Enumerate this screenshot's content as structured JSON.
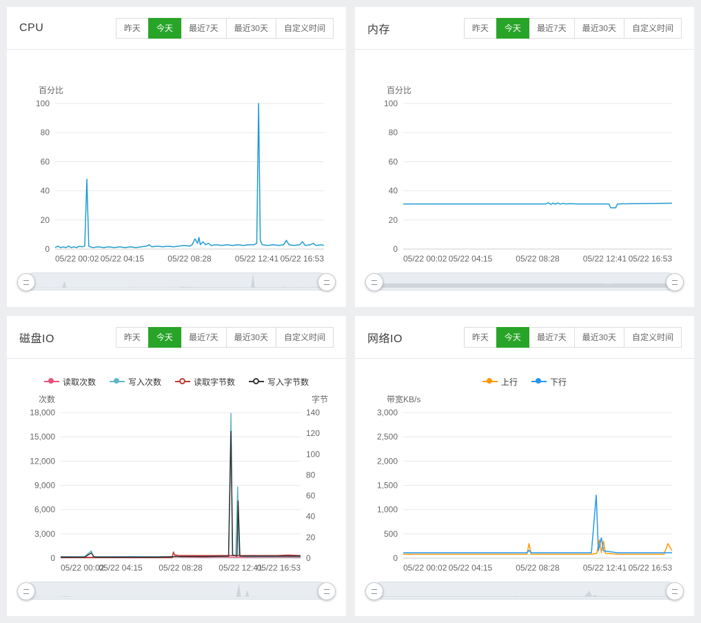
{
  "colors": {
    "page_bg": "#eceef0",
    "card_bg": "#ffffff",
    "active_time_button": "#28a428",
    "grid_line": "#e8e8e8",
    "axis_line": "#cccccc"
  },
  "time_buttons": [
    "昨天",
    "今天",
    "最近7天",
    "最近30天",
    "自定义时间"
  ],
  "active_time_index": 1,
  "panels": [
    {
      "title": "CPU"
    },
    {
      "title": "内存"
    },
    {
      "title": "磁盘IO"
    },
    {
      "title": "网络IO"
    }
  ],
  "chart_data": [
    {
      "type": "line",
      "title": "CPU",
      "unit_left": "百分比",
      "unit_right": "",
      "show_legend": false,
      "grid": true,
      "legend_position": "top-center",
      "x_labels": [
        "05/22 00:02",
        "05/22 04:15",
        "05/22 08:28",
        "05/22 12:41",
        "05/22 16:53"
      ],
      "y_left": {
        "min": 0,
        "max": 100,
        "ticks": [
          0,
          20,
          40,
          60,
          80,
          100
        ]
      },
      "shadow_series": 0,
      "series": [
        {
          "name": "",
          "color": "#1d9bd1",
          "axis": "left",
          "hollow": false,
          "points": [
            [
              0,
              1
            ],
            [
              0.01,
              2
            ],
            [
              0.02,
              1
            ],
            [
              0.03,
              1.5
            ],
            [
              0.04,
              1
            ],
            [
              0.05,
              2
            ],
            [
              0.06,
              1
            ],
            [
              0.07,
              1.5
            ],
            [
              0.08,
              1
            ],
            [
              0.09,
              2
            ],
            [
              0.1,
              1.5
            ],
            [
              0.11,
              2
            ],
            [
              0.118,
              48
            ],
            [
              0.125,
              2
            ],
            [
              0.14,
              1
            ],
            [
              0.16,
              1.5
            ],
            [
              0.18,
              1
            ],
            [
              0.2,
              1.5
            ],
            [
              0.22,
              1
            ],
            [
              0.24,
              1.5
            ],
            [
              0.26,
              1
            ],
            [
              0.28,
              1.5
            ],
            [
              0.3,
              1
            ],
            [
              0.32,
              1.5
            ],
            [
              0.34,
              2
            ],
            [
              0.35,
              3
            ],
            [
              0.36,
              1.5
            ],
            [
              0.38,
              2
            ],
            [
              0.4,
              1.5
            ],
            [
              0.42,
              2
            ],
            [
              0.44,
              1.5
            ],
            [
              0.46,
              2
            ],
            [
              0.48,
              2.5
            ],
            [
              0.5,
              2
            ],
            [
              0.51,
              3
            ],
            [
              0.52,
              7
            ],
            [
              0.53,
              4
            ],
            [
              0.535,
              8
            ],
            [
              0.54,
              3
            ],
            [
              0.55,
              5
            ],
            [
              0.56,
              3
            ],
            [
              0.57,
              4
            ],
            [
              0.58,
              2.5
            ],
            [
              0.6,
              3
            ],
            [
              0.62,
              2.5
            ],
            [
              0.64,
              3
            ],
            [
              0.66,
              2.5
            ],
            [
              0.68,
              3
            ],
            [
              0.7,
              2.5
            ],
            [
              0.72,
              3
            ],
            [
              0.74,
              3
            ],
            [
              0.75,
              4
            ],
            [
              0.757,
              100
            ],
            [
              0.763,
              6
            ],
            [
              0.77,
              3
            ],
            [
              0.79,
              2.5
            ],
            [
              0.81,
              3
            ],
            [
              0.83,
              2.5
            ],
            [
              0.85,
              3
            ],
            [
              0.86,
              6
            ],
            [
              0.87,
              3
            ],
            [
              0.89,
              2.5
            ],
            [
              0.91,
              3
            ],
            [
              0.92,
              5
            ],
            [
              0.93,
              2.5
            ],
            [
              0.95,
              3
            ],
            [
              0.96,
              4
            ],
            [
              0.97,
              2.5
            ],
            [
              0.99,
              3
            ],
            [
              1,
              2.5
            ]
          ]
        }
      ]
    },
    {
      "type": "line",
      "title": "内存",
      "unit_left": "百分比",
      "unit_right": "",
      "show_legend": false,
      "grid": true,
      "legend_position": "top-center",
      "x_labels": [
        "05/22 00:02",
        "05/22 04:15",
        "05/22 08:28",
        "05/22 12:41",
        "05/22 16:53"
      ],
      "y_left": {
        "min": 0,
        "max": 100,
        "ticks": [
          0,
          20,
          40,
          60,
          80,
          100
        ]
      },
      "shadow_series": 0,
      "series": [
        {
          "name": "",
          "color": "#1d9bd1",
          "axis": "left",
          "hollow": false,
          "points": [
            [
              0,
              31
            ],
            [
              0.1,
              31
            ],
            [
              0.2,
              31
            ],
            [
              0.3,
              31
            ],
            [
              0.4,
              31
            ],
            [
              0.5,
              31
            ],
            [
              0.53,
              31
            ],
            [
              0.54,
              31.8
            ],
            [
              0.55,
              30.6
            ],
            [
              0.557,
              31.6
            ],
            [
              0.565,
              30.8
            ],
            [
              0.575,
              31.6
            ],
            [
              0.585,
              30.9
            ],
            [
              0.595,
              31.4
            ],
            [
              0.605,
              31
            ],
            [
              0.62,
              31.2
            ],
            [
              0.65,
              31
            ],
            [
              0.7,
              31
            ],
            [
              0.75,
              31
            ],
            [
              0.765,
              31
            ],
            [
              0.772,
              28.3
            ],
            [
              0.79,
              28.3
            ],
            [
              0.797,
              31
            ],
            [
              0.85,
              31.2
            ],
            [
              0.92,
              31.3
            ],
            [
              1,
              31.5
            ]
          ]
        }
      ]
    },
    {
      "type": "line",
      "title": "磁盘IO",
      "unit_left": "次数",
      "unit_right": "字节",
      "show_legend": true,
      "grid": true,
      "legend_position": "top-center",
      "x_labels": [
        "05/22 00:02",
        "05/22 04:15",
        "05/22 08:28",
        "05/22 12:41",
        "05/22 16:53"
      ],
      "y_left": {
        "min": 0,
        "max": 18000,
        "ticks": [
          0,
          3000,
          6000,
          9000,
          12000,
          15000,
          18000
        ]
      },
      "y_right": {
        "min": 0,
        "max": 140,
        "ticks": [
          0,
          20,
          40,
          60,
          80,
          100,
          120,
          140
        ]
      },
      "shadow_series": 1,
      "series": [
        {
          "name": "读取次数",
          "color": "#e6537a",
          "axis": "left",
          "hollow": false,
          "points": [
            [
              0,
              120
            ],
            [
              0.1,
              100
            ],
            [
              0.2,
              110
            ],
            [
              0.3,
              100
            ],
            [
              0.4,
              110
            ],
            [
              0.46,
              120
            ],
            [
              0.47,
              150
            ],
            [
              0.48,
              300
            ],
            [
              0.49,
              160
            ],
            [
              0.5,
              150
            ],
            [
              0.6,
              120
            ],
            [
              0.7,
              130
            ],
            [
              0.75,
              120
            ],
            [
              0.8,
              110
            ],
            [
              0.9,
              120
            ],
            [
              1,
              110
            ]
          ]
        },
        {
          "name": "写入次数",
          "color": "#5fb6c7",
          "axis": "left",
          "hollow": false,
          "points": [
            [
              0,
              200
            ],
            [
              0.05,
              180
            ],
            [
              0.1,
              200
            ],
            [
              0.128,
              900
            ],
            [
              0.135,
              200
            ],
            [
              0.2,
              180
            ],
            [
              0.3,
              200
            ],
            [
              0.4,
              180
            ],
            [
              0.5,
              200
            ],
            [
              0.6,
              190
            ],
            [
              0.65,
              200
            ],
            [
              0.7,
              250
            ],
            [
              0.71,
              17900
            ],
            [
              0.716,
              400
            ],
            [
              0.73,
              300
            ],
            [
              0.738,
              8800
            ],
            [
              0.744,
              300
            ],
            [
              0.78,
              200
            ],
            [
              0.85,
              190
            ],
            [
              0.92,
              200
            ],
            [
              1,
              190
            ]
          ]
        },
        {
          "name": "读取字节数",
          "color": "#c23531",
          "axis": "right",
          "hollow": true,
          "points": [
            [
              0,
              0.5
            ],
            [
              0.1,
              0.5
            ],
            [
              0.2,
              0.5
            ],
            [
              0.3,
              0.5
            ],
            [
              0.4,
              0.5
            ],
            [
              0.465,
              0.5
            ],
            [
              0.47,
              6
            ],
            [
              0.475,
              3
            ],
            [
              0.48,
              3
            ],
            [
              0.5,
              2.5
            ],
            [
              0.55,
              2.5
            ],
            [
              0.6,
              2.5
            ],
            [
              0.65,
              2.5
            ],
            [
              0.7,
              2.5
            ],
            [
              0.75,
              2.5
            ],
            [
              0.8,
              2.5
            ],
            [
              0.85,
              2.5
            ],
            [
              0.9,
              2.5
            ],
            [
              0.95,
              3
            ],
            [
              1,
              2.5
            ]
          ]
        },
        {
          "name": "写入字节数",
          "color": "#333333",
          "axis": "right",
          "hollow": true,
          "points": [
            [
              0,
              1
            ],
            [
              0.1,
              1
            ],
            [
              0.128,
              5
            ],
            [
              0.14,
              1
            ],
            [
              0.2,
              1
            ],
            [
              0.3,
              1
            ],
            [
              0.4,
              1
            ],
            [
              0.5,
              1.5
            ],
            [
              0.6,
              1.5
            ],
            [
              0.7,
              2
            ],
            [
              0.71,
              122
            ],
            [
              0.717,
              3
            ],
            [
              0.735,
              2
            ],
            [
              0.74,
              55
            ],
            [
              0.747,
              2
            ],
            [
              0.8,
              2
            ],
            [
              0.9,
              2
            ],
            [
              1,
              2
            ]
          ]
        }
      ]
    },
    {
      "type": "line",
      "title": "网络IO",
      "unit_left": "带宽KB/s",
      "unit_right": "",
      "show_legend": true,
      "grid": true,
      "legend_position": "top-center",
      "x_labels": [
        "05/22 00:02",
        "05/22 04:15",
        "05/22 08:28",
        "05/22 12:41",
        "05/22 16:53"
      ],
      "y_left": {
        "min": 0,
        "max": 3000,
        "ticks": [
          0,
          500,
          1000,
          1500,
          2000,
          2500,
          3000
        ]
      },
      "shadow_series": 1,
      "series": [
        {
          "name": "上行",
          "color": "#ff9800",
          "axis": "left",
          "hollow": false,
          "points": [
            [
              0,
              80
            ],
            [
              0.1,
              80
            ],
            [
              0.2,
              80
            ],
            [
              0.3,
              80
            ],
            [
              0.4,
              80
            ],
            [
              0.46,
              80
            ],
            [
              0.468,
              300
            ],
            [
              0.476,
              80
            ],
            [
              0.6,
              80
            ],
            [
              0.7,
              80
            ],
            [
              0.72,
              100
            ],
            [
              0.73,
              380
            ],
            [
              0.737,
              120
            ],
            [
              0.745,
              350
            ],
            [
              0.752,
              100
            ],
            [
              0.8,
              80
            ],
            [
              0.9,
              80
            ],
            [
              0.97,
              80
            ],
            [
              0.985,
              300
            ],
            [
              1,
              150
            ]
          ]
        },
        {
          "name": "下行",
          "color": "#2196f3",
          "axis": "left",
          "hollow": false,
          "points": [
            [
              0,
              110
            ],
            [
              0.1,
              110
            ],
            [
              0.2,
              110
            ],
            [
              0.3,
              110
            ],
            [
              0.4,
              110
            ],
            [
              0.46,
              110
            ],
            [
              0.468,
              160
            ],
            [
              0.476,
              110
            ],
            [
              0.6,
              110
            ],
            [
              0.7,
              110
            ],
            [
              0.718,
              1300
            ],
            [
              0.726,
              150
            ],
            [
              0.737,
              420
            ],
            [
              0.745,
              150
            ],
            [
              0.8,
              110
            ],
            [
              0.9,
              110
            ],
            [
              1,
              110
            ]
          ]
        }
      ]
    }
  ]
}
